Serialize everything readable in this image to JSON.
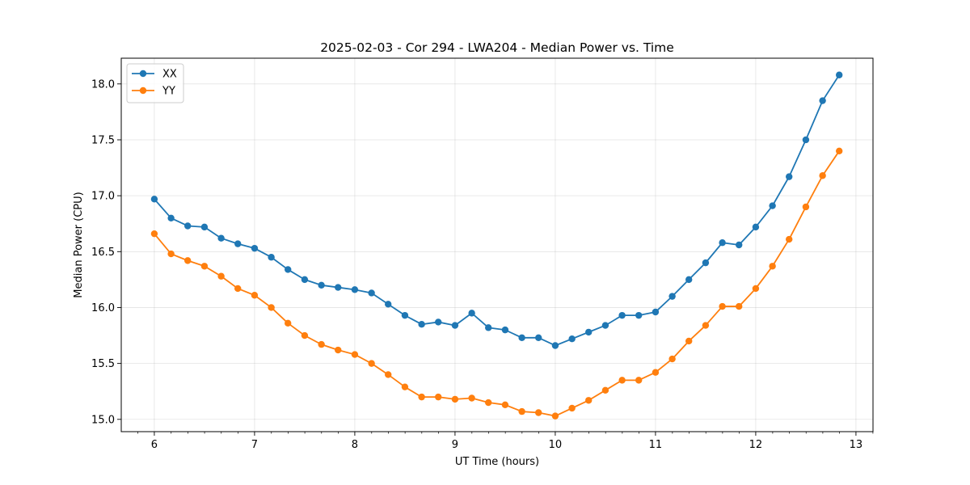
{
  "chart_data": {
    "type": "line",
    "title": "2025-02-03 - Cor 294 - LWA204 - Median Power vs. Time",
    "xlabel": "UT Time (hours)",
    "ylabel": "Median Power (CPU)",
    "xlim": [
      5.67,
      13.17
    ],
    "ylim": [
      14.89,
      18.23
    ],
    "xticks": [
      6,
      7,
      8,
      9,
      10,
      11,
      12,
      13
    ],
    "xtick_labels": [
      "6",
      "7",
      "8",
      "9",
      "10",
      "11",
      "12",
      "13"
    ],
    "xminor_step": 0.1667,
    "yticks": [
      15.0,
      15.5,
      16.0,
      16.5,
      17.0,
      17.5,
      18.0
    ],
    "ytick_labels": [
      "15.0",
      "15.5",
      "16.0",
      "16.5",
      "17.0",
      "17.5",
      "18.0"
    ],
    "grid": true,
    "legend_position": "upper-left",
    "x": [
      6.0,
      6.167,
      6.333,
      6.5,
      6.667,
      6.833,
      7.0,
      7.167,
      7.333,
      7.5,
      7.667,
      7.833,
      8.0,
      8.167,
      8.333,
      8.5,
      8.667,
      8.833,
      9.0,
      9.167,
      9.333,
      9.5,
      9.667,
      9.833,
      10.0,
      10.167,
      10.333,
      10.5,
      10.667,
      10.833,
      11.0,
      11.167,
      11.333,
      11.5,
      11.667,
      11.833,
      12.0,
      12.167,
      12.333,
      12.5,
      12.667,
      12.833
    ],
    "series": [
      {
        "name": "XX",
        "color": "#1f77b4",
        "values": [
          16.97,
          16.8,
          16.73,
          16.72,
          16.62,
          16.57,
          16.53,
          16.45,
          16.34,
          16.25,
          16.2,
          16.18,
          16.16,
          16.13,
          16.03,
          15.93,
          15.85,
          15.87,
          15.84,
          15.95,
          15.82,
          15.8,
          15.73,
          15.73,
          15.66,
          15.72,
          15.78,
          15.84,
          15.93,
          15.93,
          15.96,
          16.1,
          16.25,
          16.4,
          16.58,
          16.56,
          16.72,
          16.91,
          17.17,
          17.5,
          17.85,
          18.08
        ]
      },
      {
        "name": "YY",
        "color": "#ff7f0e",
        "values": [
          16.66,
          16.48,
          16.42,
          16.37,
          16.28,
          16.17,
          16.11,
          16.0,
          15.86,
          15.75,
          15.67,
          15.62,
          15.58,
          15.5,
          15.4,
          15.29,
          15.2,
          15.2,
          15.18,
          15.19,
          15.15,
          15.13,
          15.07,
          15.06,
          15.03,
          15.1,
          15.17,
          15.26,
          15.35,
          15.35,
          15.42,
          15.54,
          15.7,
          15.84,
          16.01,
          16.01,
          16.17,
          16.37,
          16.61,
          16.9,
          17.18,
          17.4
        ]
      }
    ]
  }
}
